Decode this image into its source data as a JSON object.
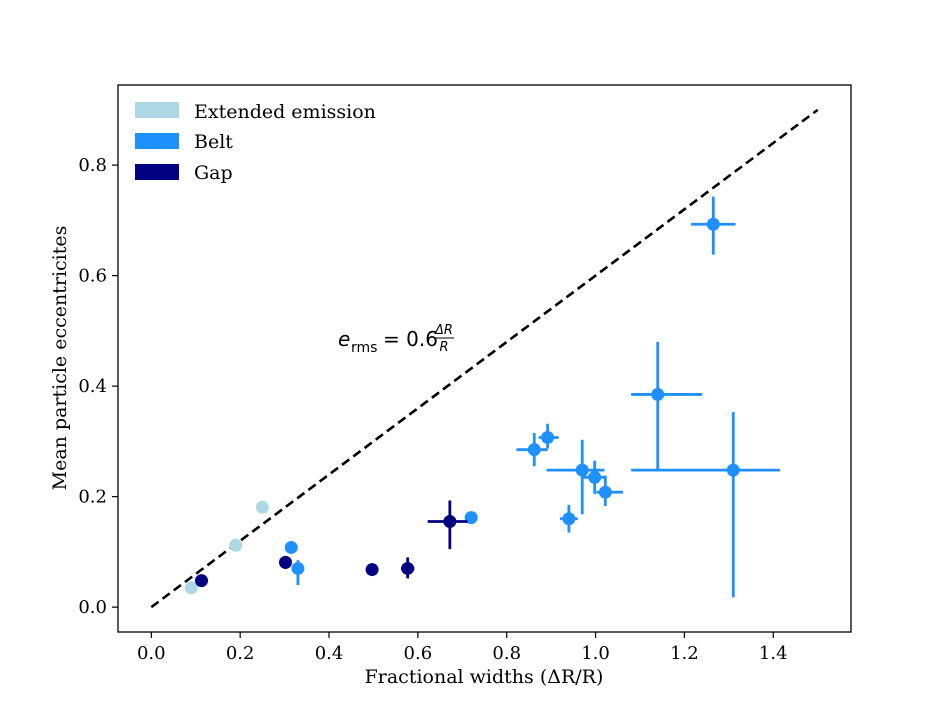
{
  "chart_data": {
    "type": "scatter",
    "title": "",
    "xlabel": "Fractional widths (ΔR/R)",
    "ylabel": "Mean particle eccentricites",
    "xlim": [
      -0.075,
      1.575
    ],
    "ylim": [
      -0.045,
      0.945
    ],
    "xticks": [
      "0.0",
      "0.2",
      "0.4",
      "0.6",
      "0.8",
      "1.0",
      "1.2",
      "1.4"
    ],
    "yticks": [
      "0.0",
      "0.2",
      "0.4",
      "0.6",
      "0.8"
    ],
    "legend_position": "top-left",
    "reference_line": {
      "label": "e_rms = 0.6 ΔR/R",
      "annotation": {
        "e": "e",
        "sub": "rms",
        "eq": "= 0.6",
        "num": "ΔR",
        "den": "R"
      },
      "slope": 0.6,
      "x_range": [
        0.0,
        1.5
      ],
      "color": "#000000",
      "style": "dashed"
    },
    "series": [
      {
        "name": "Extended emission",
        "color": "#add8e6",
        "points": [
          {
            "x": 0.09,
            "y": 0.035
          },
          {
            "x": 0.19,
            "y": 0.112
          },
          {
            "x": 0.25,
            "y": 0.181
          }
        ]
      },
      {
        "name": "Belt",
        "color": "#1e90ff",
        "points": [
          {
            "x": 0.315,
            "y": 0.108
          },
          {
            "x": 0.33,
            "y": 0.07,
            "yerr": [
              0.03,
              0.015
            ]
          },
          {
            "x": 0.72,
            "y": 0.162
          },
          {
            "x": 0.862,
            "y": 0.285,
            "xerr": [
              0.04,
              0.03
            ],
            "yerr": [
              0.03,
              0.03
            ]
          },
          {
            "x": 0.892,
            "y": 0.307,
            "xerr": [
              0.02,
              0.025
            ],
            "yerr": [
              0.02,
              0.025
            ]
          },
          {
            "x": 0.94,
            "y": 0.16,
            "xerr": [
              0.02,
              0.02
            ],
            "yerr": [
              0.025,
              0.025
            ]
          },
          {
            "x": 0.97,
            "y": 0.248,
            "xerr": [
              0.08,
              0.05
            ],
            "yerr": [
              0.08,
              0.055
            ]
          },
          {
            "x": 0.998,
            "y": 0.235,
            "xerr": [
              0.03,
              0.025
            ],
            "yerr": [
              0.03,
              0.03
            ]
          },
          {
            "x": 1.022,
            "y": 0.208,
            "xerr": [
              0.02,
              0.04
            ],
            "yerr": [
              0.025,
              0.03
            ]
          },
          {
            "x": 1.14,
            "y": 0.385,
            "xerr": [
              0.06,
              0.1
            ],
            "yerr": [
              0.135,
              0.095
            ]
          },
          {
            "x": 1.265,
            "y": 0.693,
            "xerr": [
              0.05,
              0.05
            ],
            "yerr": [
              0.055,
              0.05
            ]
          },
          {
            "x": 1.31,
            "y": 0.248,
            "xerr": [
              0.23,
              0.105
            ],
            "yerr": [
              0.23,
              0.105
            ]
          }
        ]
      },
      {
        "name": "Gap",
        "color": "#000080",
        "points": [
          {
            "x": 0.113,
            "y": 0.048
          },
          {
            "x": 0.302,
            "y": 0.081,
            "yerr": [
              0.012,
              0.01
            ]
          },
          {
            "x": 0.497,
            "y": 0.068
          },
          {
            "x": 0.577,
            "y": 0.07,
            "xerr": [
              0.015,
              0.015
            ],
            "yerr": [
              0.018,
              0.02
            ]
          },
          {
            "x": 0.672,
            "y": 0.155,
            "xerr": [
              0.05,
              0.04
            ],
            "yerr": [
              0.05,
              0.038
            ]
          }
        ]
      }
    ]
  }
}
